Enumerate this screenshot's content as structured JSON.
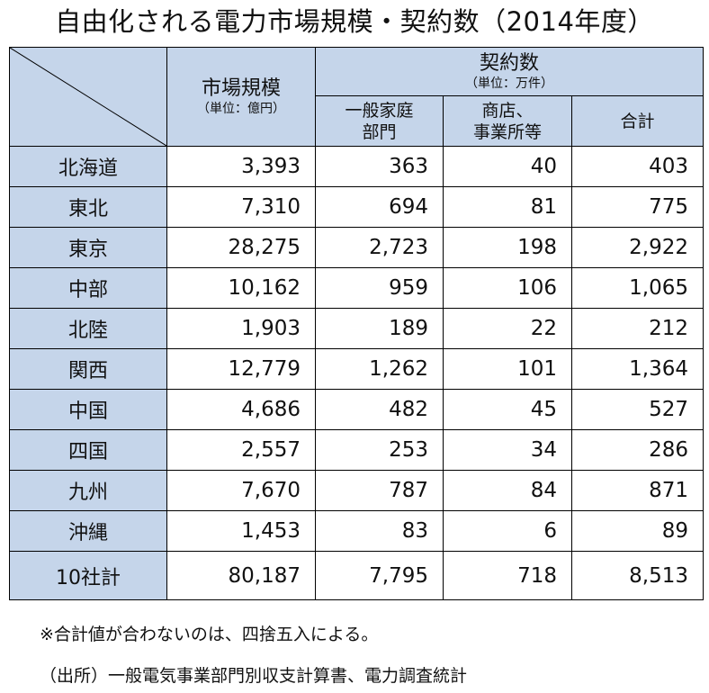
{
  "title": "自由化される電力市場規模・契約数（2014年度）",
  "header": {
    "market": "市場規模",
    "market_unit": "（単位：億円）",
    "contracts": "契約数",
    "contracts_unit": "（単位：万件）",
    "residential_line1": "一般家庭",
    "residential_line2": "部門",
    "commercial_line1": "商店、",
    "commercial_line2": "事業所等",
    "total": "合計"
  },
  "rows": [
    {
      "region": "北海道",
      "market": "3,393",
      "residential": "363",
      "commercial": "40",
      "total": "403"
    },
    {
      "region": "東北",
      "market": "7,310",
      "residential": "694",
      "commercial": "81",
      "total": "775"
    },
    {
      "region": "東京",
      "market": "28,275",
      "residential": "2,723",
      "commercial": "198",
      "total": "2,922"
    },
    {
      "region": "中部",
      "market": "10,162",
      "residential": "959",
      "commercial": "106",
      "total": "1,065"
    },
    {
      "region": "北陸",
      "market": "1,903",
      "residential": "189",
      "commercial": "22",
      "total": "212"
    },
    {
      "region": "関西",
      "market": "12,779",
      "residential": "1,262",
      "commercial": "101",
      "total": "1,364"
    },
    {
      "region": "中国",
      "market": "4,686",
      "residential": "482",
      "commercial": "45",
      "total": "527"
    },
    {
      "region": "四国",
      "market": "2,557",
      "residential": "253",
      "commercial": "34",
      "total": "286"
    },
    {
      "region": "九州",
      "market": "7,670",
      "residential": "787",
      "commercial": "84",
      "total": "871"
    },
    {
      "region": "沖縄",
      "market": "1,453",
      "residential": "83",
      "commercial": "6",
      "total": "89"
    }
  ],
  "total_row": {
    "region": "10社計",
    "market": "80,187",
    "residential": "7,795",
    "commercial": "718",
    "total": "8,513"
  },
  "notes": {
    "rounding": "※合計値が合わないのは、四捨五入による。",
    "source": "（出所）一般電気事業部門別収支計算書、電力調査統計"
  }
}
